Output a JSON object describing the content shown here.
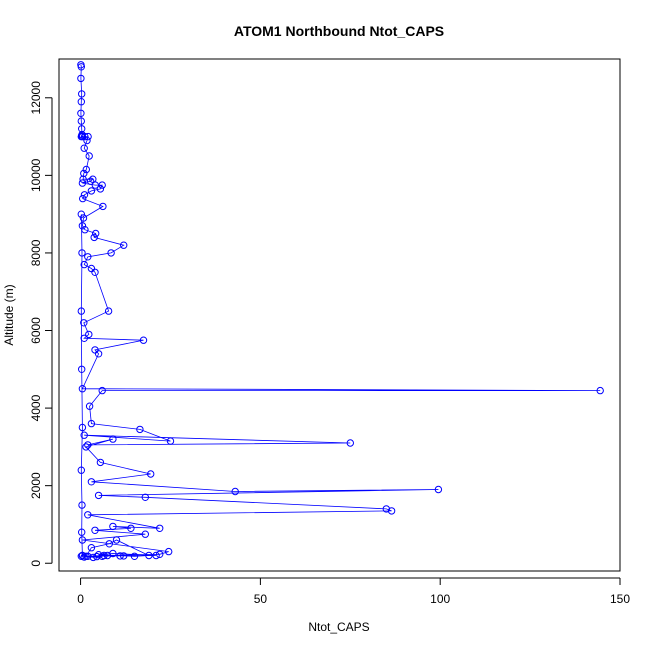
{
  "chart_data": {
    "type": "line",
    "title": "ATOM1 Northbound Ntot_CAPS",
    "xlabel": "Ntot_CAPS",
    "ylabel": "Altitude (m)",
    "xlim": [
      -6,
      150
    ],
    "ylim": [
      -200,
      13000
    ],
    "x_ticks": [
      0,
      50,
      100,
      150
    ],
    "y_ticks": [
      0,
      2000,
      4000,
      6000,
      8000,
      10000,
      12000
    ],
    "grid": false,
    "legend": "none",
    "series_color": "#0000ff",
    "marker": "open-circle",
    "series": [
      {
        "x": [
          0.1,
          0.2,
          0.1,
          0.3,
          0.2,
          0.1,
          0.2,
          0.3,
          0.4,
          0.2,
          0.5,
          0.3,
          1.2,
          2.1,
          1.8,
          1.0,
          2.4,
          1.6,
          0.9,
          0.7,
          3.4,
          2.8,
          0.5,
          4.1,
          6.0,
          5.5,
          3.0,
          1.1,
          0.6,
          6.2,
          0.8,
          0.5,
          1.2,
          4.2,
          3.8,
          12.0,
          8.5,
          2.0,
          1.0,
          3.0,
          4.0,
          7.8,
          0.9,
          2.3,
          1.0,
          17.5,
          4.0,
          5.0,
          0.5,
          144.5,
          6.0,
          2.5,
          3.0,
          16.5,
          25.0,
          1.0,
          75.0,
          2.0,
          9.0,
          1.5,
          5.5,
          19.5,
          3.0,
          43.0,
          99.5,
          5.0,
          18.0,
          85.0,
          86.5,
          2.0,
          22.0,
          9.0,
          14.0,
          4.0,
          18.0,
          0.5,
          24.5,
          22.0,
          6.5,
          1.5,
          3.0,
          8.0,
          10.0,
          19.0,
          15.0,
          12.0,
          5.0,
          9.0,
          21.0,
          11.0,
          2.0,
          0.5,
          3.5,
          6.0,
          7.5,
          1.0,
          4.5,
          0.2,
          0.5,
          0.3,
          0.4,
          0.2,
          0.5,
          0.3,
          0.2,
          0.4,
          0.2
        ],
        "y": [
          12850,
          12800,
          12500,
          12100,
          11900,
          11600,
          11400,
          11200,
          11050,
          11000,
          11000,
          11020,
          11000,
          11000,
          10900,
          10700,
          10500,
          10150,
          10050,
          9900,
          9900,
          9850,
          9800,
          9750,
          9750,
          9650,
          9600,
          9500,
          9400,
          9200,
          8900,
          8700,
          8600,
          8500,
          8400,
          8200,
          8000,
          7900,
          7700,
          7600,
          7500,
          6500,
          6200,
          5900,
          5800,
          5750,
          5500,
          5400,
          4500,
          4450,
          4450,
          4050,
          3600,
          3450,
          3150,
          3300,
          3100,
          3050,
          3200,
          3000,
          2600,
          2300,
          2100,
          1850,
          1900,
          1750,
          1700,
          1400,
          1350,
          1250,
          900,
          950,
          900,
          850,
          750,
          600,
          300,
          230,
          200,
          180,
          400,
          500,
          600,
          200,
          180,
          190,
          220,
          250,
          200,
          190,
          180,
          200,
          150,
          180,
          200,
          160,
          170,
          180,
          200,
          800,
          1500,
          2400,
          3500,
          5000,
          6500,
          8000,
          9000
        ]
      }
    ]
  }
}
